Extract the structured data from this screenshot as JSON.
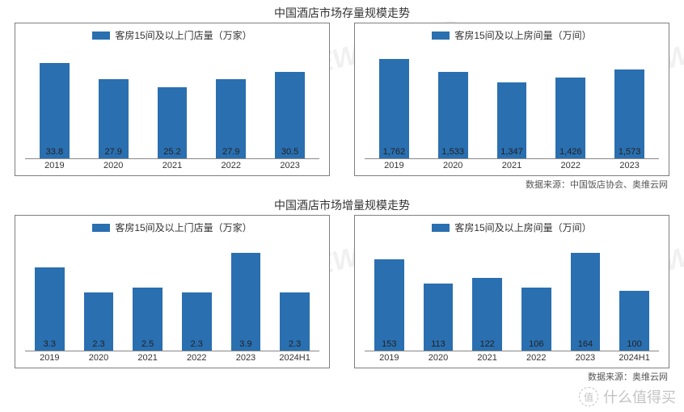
{
  "colors": {
    "bar": "#2a6fb0",
    "border": "#7f7f7f",
    "text": "#333333",
    "value_text": "#222222",
    "background": "#ffffff",
    "axis": "#888888"
  },
  "watermarks": [
    "AVC 奥维云网 ALL VIEW CLOUD",
    "AVC 奥维云网 ALL VIEW CLOUD",
    "AVC 奥维云网 ALL VIEW CLOUD",
    "AVC 奥维云网 ALL VIEW CLOUD"
  ],
  "worth_brand": {
    "icon": "值",
    "text": "什么值得买"
  },
  "sections": [
    {
      "title": "中国酒店市场存量规模走势",
      "source": "数据来源：中国饭店协会、奥维云网",
      "charts": [
        {
          "type": "bar",
          "legend": "客房15间及以上门店量（万家）",
          "categories": [
            "2019",
            "2020",
            "2021",
            "2022",
            "2023"
          ],
          "values": [
            33.8,
            27.9,
            25.2,
            27.9,
            30.5
          ],
          "value_labels": [
            "33.8",
            "27.9",
            "25.2",
            "27.9",
            "30.5"
          ],
          "ylim": [
            0,
            40
          ],
          "bar_color": "#2a6fb0",
          "bar_width": 0.72,
          "background_color": "#ffffff",
          "label_fontsize": 11,
          "legend_fontsize": 12
        },
        {
          "type": "bar",
          "legend": "客房15间及以上房间量（万间）",
          "categories": [
            "2019",
            "2020",
            "2021",
            "2022",
            "2023"
          ],
          "values": [
            1762,
            1533,
            1347,
            1426,
            1573
          ],
          "value_labels": [
            "1,762",
            "1,533",
            "1,347",
            "1,426",
            "1,573"
          ],
          "ylim": [
            0,
            2000
          ],
          "bar_color": "#2a6fb0",
          "bar_width": 0.72,
          "background_color": "#ffffff",
          "label_fontsize": 11,
          "legend_fontsize": 12
        }
      ]
    },
    {
      "title": "中国酒店市场增量规模走势",
      "source": "数据来源：奥维云网",
      "charts": [
        {
          "type": "bar",
          "legend": "客房15间及以上门店量（万家）",
          "categories": [
            "2019",
            "2020",
            "2021",
            "2022",
            "2023",
            "2024H1"
          ],
          "values": [
            3.3,
            2.3,
            2.5,
            2.3,
            3.9,
            2.3
          ],
          "value_labels": [
            "3.3",
            "2.3",
            "2.5",
            "2.3",
            "3.9",
            "2.3"
          ],
          "ylim": [
            0,
            4.5
          ],
          "bar_color": "#2a6fb0",
          "bar_width": 0.72,
          "background_color": "#ffffff",
          "label_fontsize": 11,
          "legend_fontsize": 12
        },
        {
          "type": "bar",
          "legend": "客房15间及以上房间量（万间）",
          "categories": [
            "2019",
            "2020",
            "2021",
            "2022",
            "2023",
            "2024H1"
          ],
          "values": [
            153,
            113,
            122,
            106,
            164,
            100
          ],
          "value_labels": [
            "153",
            "113",
            "122",
            "106",
            "164",
            "100"
          ],
          "ylim": [
            0,
            190
          ],
          "bar_color": "#2a6fb0",
          "bar_width": 0.72,
          "background_color": "#ffffff",
          "label_fontsize": 11,
          "legend_fontsize": 12
        }
      ]
    }
  ]
}
